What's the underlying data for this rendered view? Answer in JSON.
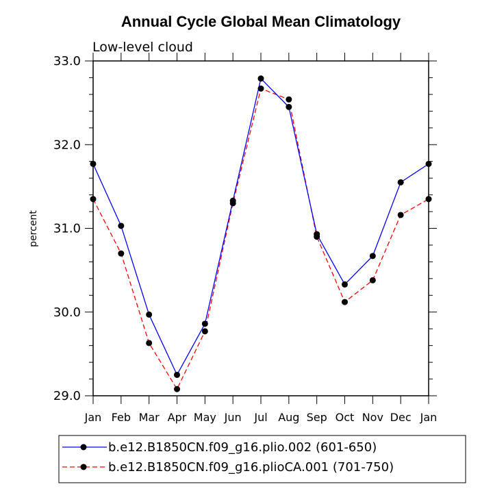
{
  "chart_data": {
    "type": "line",
    "title": "Annual Cycle Global Mean Climatology",
    "subtitle": "Low-level cloud",
    "xlabel": "",
    "ylabel": "percent",
    "categories": [
      "Jan",
      "Feb",
      "Mar",
      "Apr",
      "May",
      "Jun",
      "Jul",
      "Aug",
      "Sep",
      "Oct",
      "Nov",
      "Dec",
      "Jan"
    ],
    "ylim": [
      29.0,
      33.0
    ],
    "yticks": [
      "29.0",
      "30.0",
      "31.0",
      "32.0",
      "33.0"
    ],
    "series": [
      {
        "name": "b.e12.B1850CN.f09_g16.plio.002 (601-650)",
        "color": "#0000ff",
        "dash": "solid",
        "values": [
          31.77,
          31.03,
          29.97,
          29.25,
          29.86,
          31.33,
          32.79,
          32.45,
          30.93,
          30.33,
          30.67,
          31.55,
          31.77
        ]
      },
      {
        "name": "b.e12.B1850CN.f09_g16.plioCA.001 (701-750)",
        "color": "#ff0000",
        "dash": "dashed",
        "values": [
          31.35,
          30.7,
          29.63,
          29.08,
          29.77,
          31.3,
          32.67,
          32.54,
          30.9,
          30.12,
          30.38,
          31.16,
          31.35
        ]
      }
    ]
  }
}
